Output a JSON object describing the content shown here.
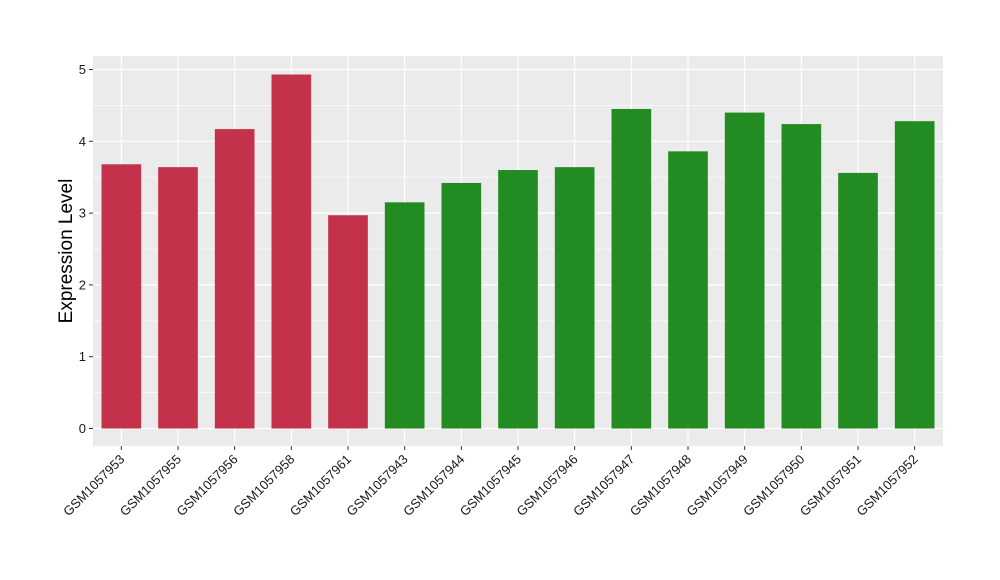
{
  "chart_data": {
    "type": "bar",
    "title": "",
    "xlabel": "",
    "ylabel": "Expression Level",
    "ylim": [
      0,
      5.15
    ],
    "yticks": [
      0,
      1,
      2,
      3,
      4,
      5
    ],
    "grid": true,
    "legend": "none",
    "categories": [
      "GSM1057953",
      "GSM1057955",
      "GSM1057956",
      "GSM1057958",
      "GSM1057961",
      "GSM1057943",
      "GSM1057944",
      "GSM1057945",
      "GSM1057946",
      "GSM1057947",
      "GSM1057948",
      "GSM1057949",
      "GSM1057950",
      "GSM1057951",
      "GSM1057952"
    ],
    "values": [
      3.68,
      3.64,
      4.17,
      4.93,
      2.97,
      3.15,
      3.42,
      3.6,
      3.64,
      4.45,
      3.86,
      4.4,
      4.24,
      3.56,
      4.28
    ],
    "bar_colors": [
      "#c4314b",
      "#c4314b",
      "#c4314b",
      "#c4314b",
      "#c4314b",
      "#228b22",
      "#228b22",
      "#228b22",
      "#228b22",
      "#228b22",
      "#228b22",
      "#228b22",
      "#228b22",
      "#228b22",
      "#228b22"
    ],
    "colors": {
      "panel_background": "#ebebeb",
      "grid": "#ffffff",
      "group_red": "#c4314b",
      "group_green": "#228b22"
    }
  }
}
